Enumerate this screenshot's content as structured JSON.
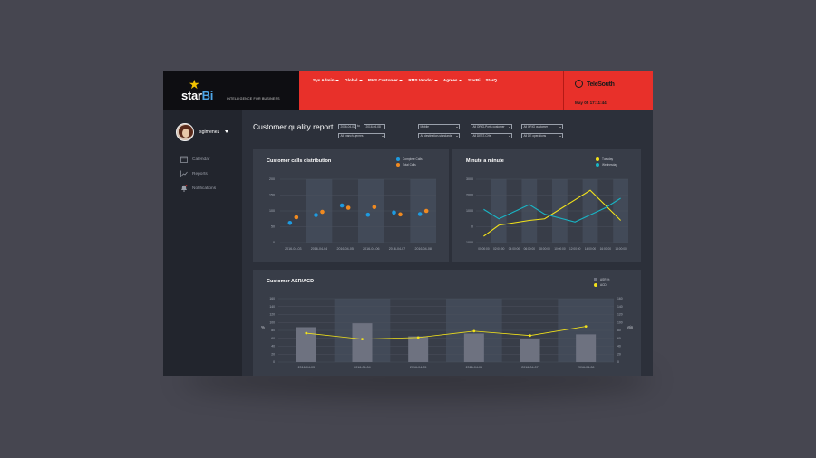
{
  "header": {
    "logo_main": "star",
    "logo_accent": "Bi",
    "tagline": "INTELLIGENCE FOR BUSINESS",
    "nav": [
      {
        "label": "Sys Admin",
        "dropdown": true
      },
      {
        "label": "Global",
        "dropdown": true
      },
      {
        "label": "RMS Customer",
        "dropdown": true
      },
      {
        "label": "RMS Vendor",
        "dropdown": true
      },
      {
        "label": "Agrees",
        "dropdown": true
      },
      {
        "label": "StarBi",
        "dropdown": false
      },
      {
        "label": "StarQ",
        "dropdown": false
      }
    ],
    "brand_name": "TeleSouth",
    "date": "May 05   17:11:44"
  },
  "sidebar": {
    "user_name": "sgimenez",
    "items": [
      {
        "label": "Calendar",
        "icon": "calendar-icon"
      },
      {
        "label": "Reports",
        "icon": "chart-icon"
      },
      {
        "label": "Notifications",
        "icon": "bell-icon"
      }
    ]
  },
  "page": {
    "title": "Customer quality report",
    "date_from": "2016-04-02",
    "to_label": "to",
    "date_to": "2016-04-08",
    "filters": [
      {
        "value": "Mobile"
      },
      {
        "value": "All ORIG-Ports customer"
      },
      {
        "value": "All ORIG customer"
      },
      {
        "value": "All branch-genres"
      },
      {
        "value": "All destination-standards"
      },
      {
        "value": "All DEST-CHs"
      },
      {
        "value": "All DE operations"
      }
    ]
  },
  "colors": {
    "accent_red": "#e8302a",
    "blue": "#1e9be0",
    "orange": "#f08a20",
    "yellow": "#f2e21a",
    "cyan": "#19b4c4",
    "bar_gray": "#6e7280"
  },
  "chart_data": [
    {
      "type": "scatter",
      "title": "Customer calls distribution",
      "categories": [
        "2016-04-03",
        "2016-04-04",
        "2016-04-05",
        "2016-04-06",
        "2016-04-07",
        "2016-04-08"
      ],
      "ylim": [
        0,
        200
      ],
      "yticks": [
        "200",
        "150",
        "100",
        "50",
        "0"
      ],
      "legend": "top-right",
      "series": [
        {
          "name": "Complete Calls",
          "color": "#1e9be0",
          "values": [
            62,
            87,
            117,
            88,
            95,
            90
          ]
        },
        {
          "name": "Total Calls",
          "color": "#f08a20",
          "values": [
            80,
            97,
            110,
            112,
            89,
            100
          ]
        }
      ]
    },
    {
      "type": "line",
      "title": "Minute a minute",
      "categories": [
        "00:00:00",
        "02:00:00",
        "04:00:00",
        "06:00:00",
        "08:00:00",
        "10:00:00",
        "12:00:00",
        "14:00:00",
        "16:00:00",
        "18:00:00"
      ],
      "ylim": [
        -1000,
        3000
      ],
      "yticks": [
        "3000",
        "2000",
        "1000",
        "0",
        "-1000"
      ],
      "legend": "top-right",
      "series": [
        {
          "name": "Tuesday",
          "color": "#f2e21a",
          "x": [
            0,
            1,
            3,
            4,
            5,
            7,
            9
          ],
          "values": [
            -600,
            100,
            400,
            500,
            1100,
            2300,
            400
          ]
        },
        {
          "name": "Wednesday",
          "color": "#19b4c4",
          "x": [
            0,
            1,
            3,
            4,
            6,
            8,
            9
          ],
          "values": [
            1100,
            500,
            1400,
            800,
            300,
            1200,
            1800
          ]
        }
      ]
    },
    {
      "type": "bar",
      "title": "Customer ASR/ACD",
      "categories": [
        "2016-04-03",
        "2016-04-04",
        "2016-04-05",
        "2016-04-06",
        "2016-04-07",
        "2016-04-08"
      ],
      "ylabel": "%",
      "y2label": "Min",
      "ylim": [
        0,
        160
      ],
      "yticks": [
        "160",
        "140",
        "120",
        "100",
        "80",
        "60",
        "40",
        "20",
        "0"
      ],
      "legend": "top-right",
      "series": [
        {
          "name": "ASR %",
          "color": "#6e7280",
          "values": [
            88,
            98,
            65,
            72,
            58,
            70
          ]
        },
        {
          "name": "ACD",
          "color": "#f2e21a",
          "values": [
            73,
            58,
            62,
            78,
            67,
            90
          ]
        }
      ]
    }
  ]
}
